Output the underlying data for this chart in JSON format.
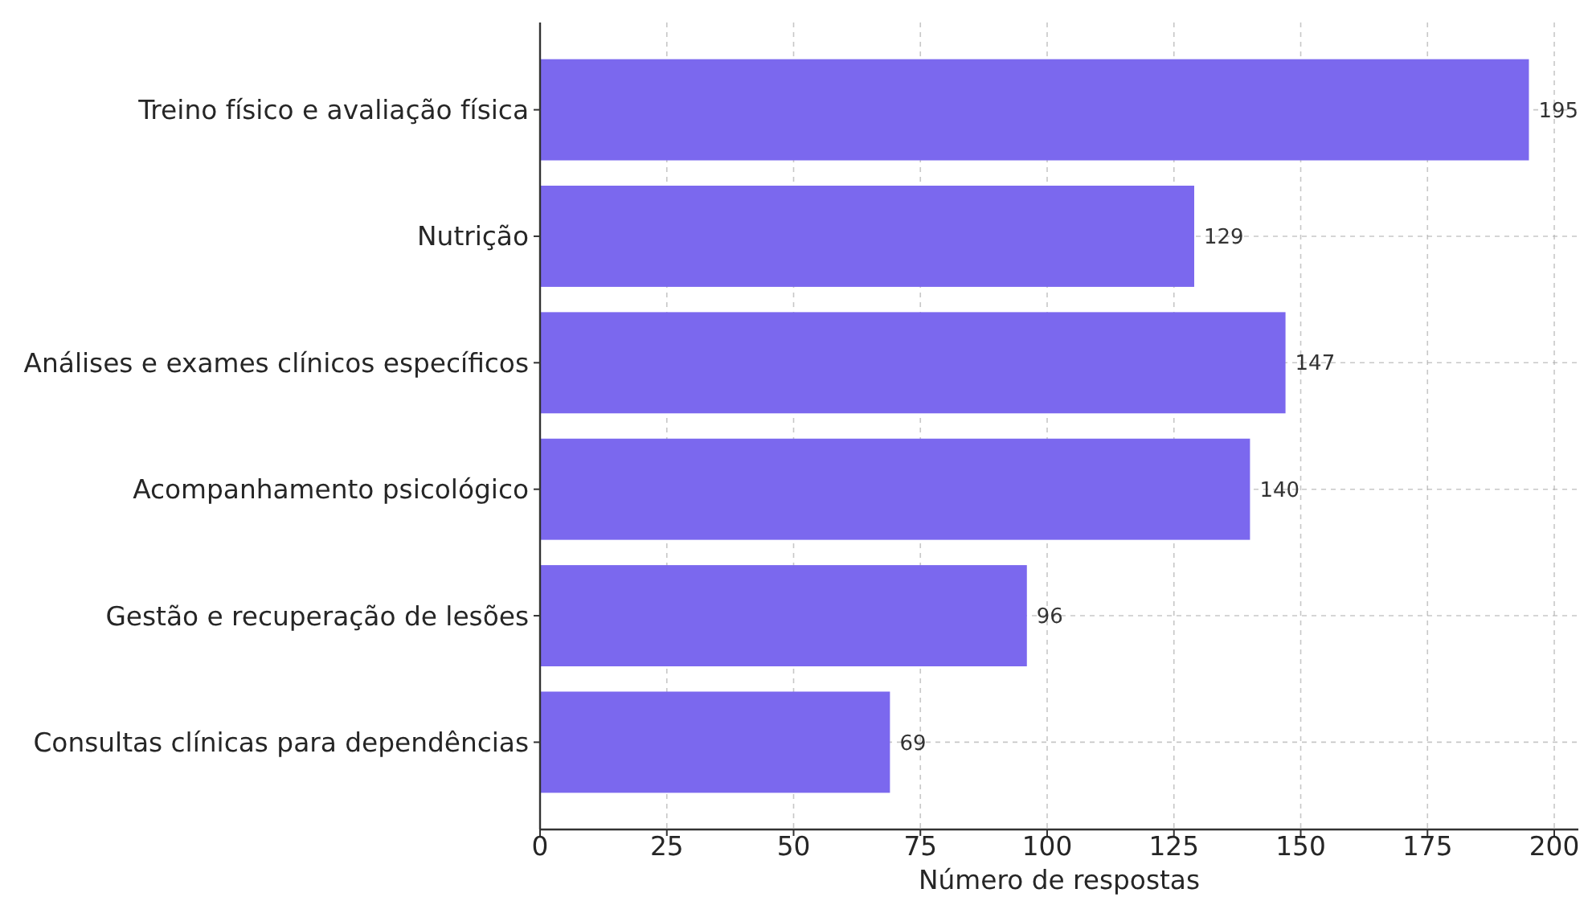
{
  "chart_data": {
    "type": "bar",
    "orientation": "horizontal",
    "categories": [
      "Treino físico e avaliação física",
      "Nutrição",
      "Análises e exames clínicos específicos",
      "Acompanhamento psicológico",
      "Gestão e recuperação de lesões",
      "Consultas clínicas para dependências"
    ],
    "values": [
      195,
      129,
      147,
      140,
      96,
      69
    ],
    "color": "#7b68ee",
    "xlim": [
      0,
      204.75
    ],
    "xticks": [
      0,
      25,
      50,
      75,
      100,
      125,
      150,
      175,
      200
    ],
    "xlabel": "Número de respostas",
    "grid": true,
    "data_labels": true
  }
}
